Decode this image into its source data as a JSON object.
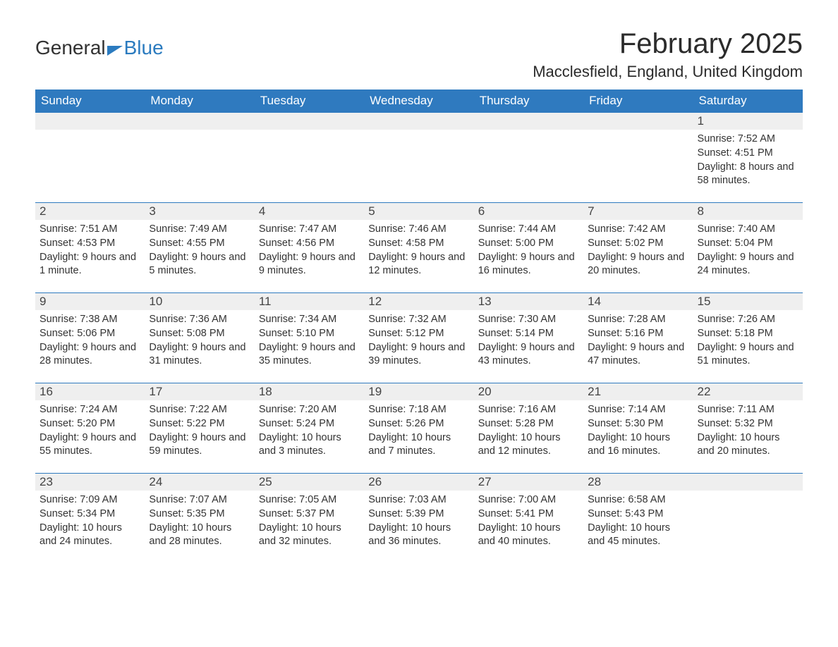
{
  "logo": {
    "part1": "General",
    "part2": "Blue"
  },
  "title": "February 2025",
  "location": "Macclesfield, England, United Kingdom",
  "colors": {
    "header_bg": "#2f7abf",
    "header_text": "#ffffff",
    "daynum_bg": "#efefef",
    "row_border": "#2f7abf",
    "text": "#333333",
    "logo_blue": "#2b7bbf"
  },
  "weekdays": [
    "Sunday",
    "Monday",
    "Tuesday",
    "Wednesday",
    "Thursday",
    "Friday",
    "Saturday"
  ],
  "weeks": [
    [
      null,
      null,
      null,
      null,
      null,
      null,
      {
        "n": "1",
        "sunrise": "Sunrise: 7:52 AM",
        "sunset": "Sunset: 4:51 PM",
        "daylight": "Daylight: 8 hours and 58 minutes."
      }
    ],
    [
      {
        "n": "2",
        "sunrise": "Sunrise: 7:51 AM",
        "sunset": "Sunset: 4:53 PM",
        "daylight": "Daylight: 9 hours and 1 minute."
      },
      {
        "n": "3",
        "sunrise": "Sunrise: 7:49 AM",
        "sunset": "Sunset: 4:55 PM",
        "daylight": "Daylight: 9 hours and 5 minutes."
      },
      {
        "n": "4",
        "sunrise": "Sunrise: 7:47 AM",
        "sunset": "Sunset: 4:56 PM",
        "daylight": "Daylight: 9 hours and 9 minutes."
      },
      {
        "n": "5",
        "sunrise": "Sunrise: 7:46 AM",
        "sunset": "Sunset: 4:58 PM",
        "daylight": "Daylight: 9 hours and 12 minutes."
      },
      {
        "n": "6",
        "sunrise": "Sunrise: 7:44 AM",
        "sunset": "Sunset: 5:00 PM",
        "daylight": "Daylight: 9 hours and 16 minutes."
      },
      {
        "n": "7",
        "sunrise": "Sunrise: 7:42 AM",
        "sunset": "Sunset: 5:02 PM",
        "daylight": "Daylight: 9 hours and 20 minutes."
      },
      {
        "n": "8",
        "sunrise": "Sunrise: 7:40 AM",
        "sunset": "Sunset: 5:04 PM",
        "daylight": "Daylight: 9 hours and 24 minutes."
      }
    ],
    [
      {
        "n": "9",
        "sunrise": "Sunrise: 7:38 AM",
        "sunset": "Sunset: 5:06 PM",
        "daylight": "Daylight: 9 hours and 28 minutes."
      },
      {
        "n": "10",
        "sunrise": "Sunrise: 7:36 AM",
        "sunset": "Sunset: 5:08 PM",
        "daylight": "Daylight: 9 hours and 31 minutes."
      },
      {
        "n": "11",
        "sunrise": "Sunrise: 7:34 AM",
        "sunset": "Sunset: 5:10 PM",
        "daylight": "Daylight: 9 hours and 35 minutes."
      },
      {
        "n": "12",
        "sunrise": "Sunrise: 7:32 AM",
        "sunset": "Sunset: 5:12 PM",
        "daylight": "Daylight: 9 hours and 39 minutes."
      },
      {
        "n": "13",
        "sunrise": "Sunrise: 7:30 AM",
        "sunset": "Sunset: 5:14 PM",
        "daylight": "Daylight: 9 hours and 43 minutes."
      },
      {
        "n": "14",
        "sunrise": "Sunrise: 7:28 AM",
        "sunset": "Sunset: 5:16 PM",
        "daylight": "Daylight: 9 hours and 47 minutes."
      },
      {
        "n": "15",
        "sunrise": "Sunrise: 7:26 AM",
        "sunset": "Sunset: 5:18 PM",
        "daylight": "Daylight: 9 hours and 51 minutes."
      }
    ],
    [
      {
        "n": "16",
        "sunrise": "Sunrise: 7:24 AM",
        "sunset": "Sunset: 5:20 PM",
        "daylight": "Daylight: 9 hours and 55 minutes."
      },
      {
        "n": "17",
        "sunrise": "Sunrise: 7:22 AM",
        "sunset": "Sunset: 5:22 PM",
        "daylight": "Daylight: 9 hours and 59 minutes."
      },
      {
        "n": "18",
        "sunrise": "Sunrise: 7:20 AM",
        "sunset": "Sunset: 5:24 PM",
        "daylight": "Daylight: 10 hours and 3 minutes."
      },
      {
        "n": "19",
        "sunrise": "Sunrise: 7:18 AM",
        "sunset": "Sunset: 5:26 PM",
        "daylight": "Daylight: 10 hours and 7 minutes."
      },
      {
        "n": "20",
        "sunrise": "Sunrise: 7:16 AM",
        "sunset": "Sunset: 5:28 PM",
        "daylight": "Daylight: 10 hours and 12 minutes."
      },
      {
        "n": "21",
        "sunrise": "Sunrise: 7:14 AM",
        "sunset": "Sunset: 5:30 PM",
        "daylight": "Daylight: 10 hours and 16 minutes."
      },
      {
        "n": "22",
        "sunrise": "Sunrise: 7:11 AM",
        "sunset": "Sunset: 5:32 PM",
        "daylight": "Daylight: 10 hours and 20 minutes."
      }
    ],
    [
      {
        "n": "23",
        "sunrise": "Sunrise: 7:09 AM",
        "sunset": "Sunset: 5:34 PM",
        "daylight": "Daylight: 10 hours and 24 minutes."
      },
      {
        "n": "24",
        "sunrise": "Sunrise: 7:07 AM",
        "sunset": "Sunset: 5:35 PM",
        "daylight": "Daylight: 10 hours and 28 minutes."
      },
      {
        "n": "25",
        "sunrise": "Sunrise: 7:05 AM",
        "sunset": "Sunset: 5:37 PM",
        "daylight": "Daylight: 10 hours and 32 minutes."
      },
      {
        "n": "26",
        "sunrise": "Sunrise: 7:03 AM",
        "sunset": "Sunset: 5:39 PM",
        "daylight": "Daylight: 10 hours and 36 minutes."
      },
      {
        "n": "27",
        "sunrise": "Sunrise: 7:00 AM",
        "sunset": "Sunset: 5:41 PM",
        "daylight": "Daylight: 10 hours and 40 minutes."
      },
      {
        "n": "28",
        "sunrise": "Sunrise: 6:58 AM",
        "sunset": "Sunset: 5:43 PM",
        "daylight": "Daylight: 10 hours and 45 minutes."
      },
      null
    ]
  ]
}
